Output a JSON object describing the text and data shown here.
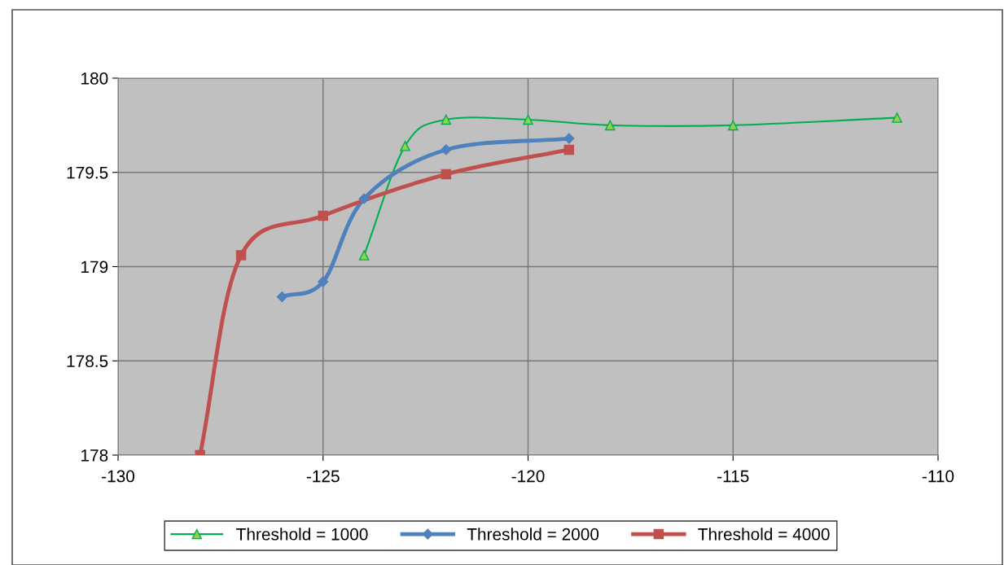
{
  "chart_data": {
    "type": "line",
    "xlim": [
      -130,
      -110
    ],
    "xticks": [
      -130,
      -125,
      -120,
      -115,
      -110
    ],
    "ylim": [
      178,
      180
    ],
    "yticks": [
      178,
      {
        "value": 178.5,
        "label": "178.5"
      },
      179,
      {
        "value": 179.5,
        "label": "179.5"
      },
      180
    ],
    "grid": true,
    "legend": "bottom",
    "series": [
      {
        "name": "Threshold = 1000",
        "color": "#00b050",
        "marker": "triangle",
        "x": [
          -124,
          -123,
          -122,
          -120,
          -118,
          -115,
          -111
        ],
        "values": [
          179.06,
          179.64,
          179.78,
          179.78,
          179.75,
          179.75,
          179.79
        ]
      },
      {
        "name": "Threshold = 2000",
        "color": "#4f81bd",
        "marker": "diamond",
        "x": [
          -126,
          -125,
          -124,
          -122,
          -119
        ],
        "values": [
          178.84,
          178.92,
          179.36,
          179.62,
          179.68
        ]
      },
      {
        "name": "Threshold = 4000",
        "color": "#c0504d",
        "marker": "square",
        "x": [
          -128,
          -127,
          -125,
          -122,
          -119
        ],
        "values": [
          178.0,
          179.06,
          179.27,
          179.49,
          179.62
        ]
      }
    ]
  }
}
